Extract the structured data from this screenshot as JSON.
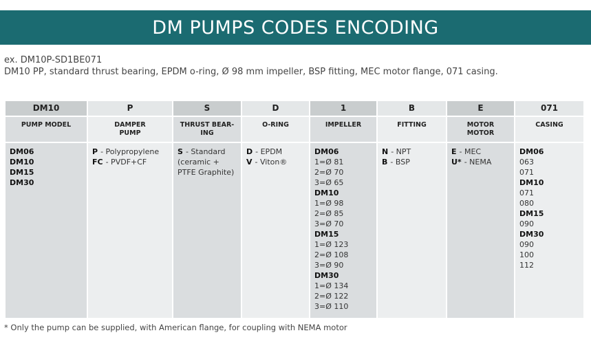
{
  "header": {
    "title": "DM PUMPS CODES ENCODING"
  },
  "intro": {
    "example": "ex. DM10P-SD1BE071",
    "description": "DM10 PP, standard thrust bearing, EPDM o-ring, Ø 98 mm impeller, BSP fitting, MEC motor flange, 071 casing."
  },
  "table": {
    "columns": [
      {
        "code": "DM10",
        "label": [
          "PUMP MODEL"
        ],
        "lines": [
          {
            "b": "DM06"
          },
          {
            "b": "DM10"
          },
          {
            "b": "DM15"
          },
          {
            "b": "DM30"
          }
        ]
      },
      {
        "code": "P",
        "label": [
          "DAMPER",
          "PUMP"
        ],
        "lines": [
          {
            "b": "P",
            "t": "- Polypropylene"
          },
          {
            "b": "FC",
            "t": "- PVDF+CF"
          }
        ]
      },
      {
        "code": "S",
        "label": [
          "THRUST BEAR-",
          "ING"
        ],
        "lines": [
          {
            "b": "S",
            "t": "- Standard"
          },
          {
            "t": "(ceramic +"
          },
          {
            "t": "PTFE Graphite)"
          }
        ]
      },
      {
        "code": "D",
        "label": [
          "O-RING"
        ],
        "lines": [
          {
            "b": "D",
            "t": "- EPDM"
          },
          {
            "b": "V",
            "t": "- Viton®"
          }
        ]
      },
      {
        "code": "1",
        "label": [
          "IMPELLER"
        ],
        "lines": [
          {
            "b": "DM06"
          },
          {
            "t": "1=Ø 81"
          },
          {
            "t": "2=Ø 70"
          },
          {
            "t": "3=Ø 65"
          },
          {
            "b": "DM10"
          },
          {
            "t": "1=Ø 98"
          },
          {
            "t": "2=Ø 85"
          },
          {
            "t": "3=Ø 70"
          },
          {
            "b": "DM15"
          },
          {
            "t": "1=Ø 123"
          },
          {
            "t": "2=Ø 108"
          },
          {
            "t": "3=Ø 90"
          },
          {
            "b": "DM30"
          },
          {
            "t": "1=Ø 134"
          },
          {
            "t": "2=Ø 122"
          },
          {
            "t": "3=Ø 110"
          }
        ]
      },
      {
        "code": "B",
        "label": [
          "FITTING"
        ],
        "lines": [
          {
            "b": "N",
            "t": "- NPT"
          },
          {
            "b": "B",
            "t": "- BSP"
          }
        ]
      },
      {
        "code": "E",
        "label": [
          "MOTOR",
          "MOTOR"
        ],
        "lines": [
          {
            "b": "E",
            "t": "- MEC"
          },
          {
            "b": "U*",
            "t": "- NEMA"
          }
        ]
      },
      {
        "code": "071",
        "label": [
          "CASING"
        ],
        "lines": [
          {
            "b": "DM06"
          },
          {
            "t": "063"
          },
          {
            "t": "071"
          },
          {
            "b": "DM10"
          },
          {
            "t": "071"
          },
          {
            "t": "080"
          },
          {
            "b": "DM15"
          },
          {
            "t": "090"
          },
          {
            "b": "DM30"
          },
          {
            "t": "090"
          },
          {
            "t": "100"
          },
          {
            "t": "112"
          }
        ]
      }
    ]
  },
  "footnote": "* Only the pump can be supplied, with American flange, for coupling with NEMA motor"
}
